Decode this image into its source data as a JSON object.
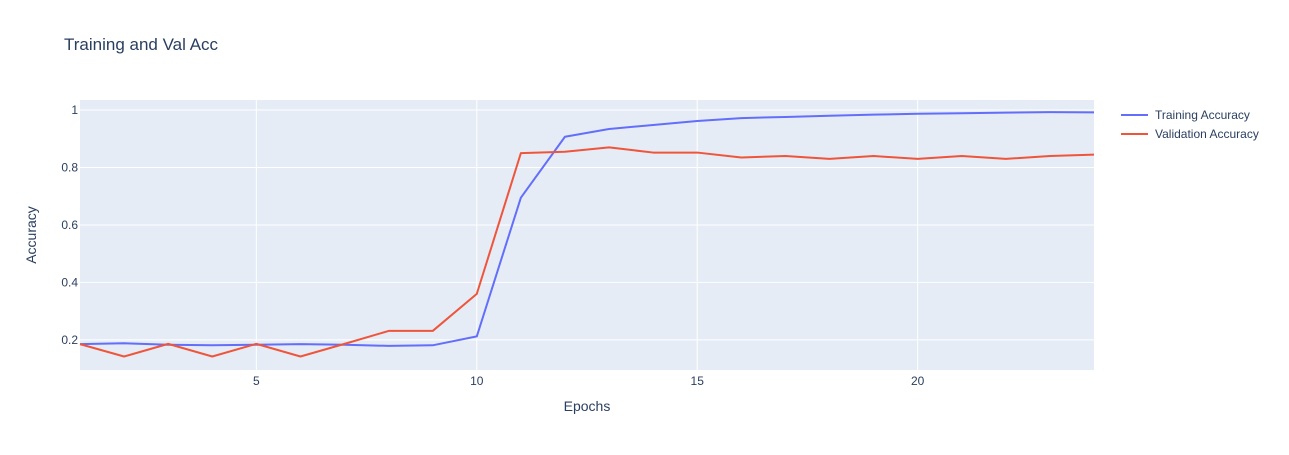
{
  "chart_data": {
    "type": "line",
    "title": "Training and Val Acc",
    "xlabel": "Epochs",
    "ylabel": "Accuracy",
    "x": [
      1,
      2,
      3,
      4,
      5,
      6,
      7,
      8,
      9,
      10,
      11,
      12,
      13,
      14,
      15,
      16,
      17,
      18,
      19,
      20,
      21,
      22,
      23,
      24
    ],
    "series": [
      {
        "name": "Training Accuracy",
        "color": "#636efa",
        "values": [
          0.185,
          0.188,
          0.183,
          0.181,
          0.183,
          0.185,
          0.183,
          0.179,
          0.181,
          0.212,
          0.695,
          0.907,
          0.934,
          0.948,
          0.962,
          0.972,
          0.976,
          0.98,
          0.984,
          0.987,
          0.989,
          0.991,
          0.993,
          0.992
        ]
      },
      {
        "name": "Validation Accuracy",
        "color": "#ef553b",
        "values": [
          0.185,
          0.142,
          0.186,
          0.142,
          0.186,
          0.142,
          0.186,
          0.231,
          0.231,
          0.36,
          0.85,
          0.855,
          0.87,
          0.852,
          0.852,
          0.835,
          0.84,
          0.83,
          0.84,
          0.83,
          0.84,
          0.83,
          0.84,
          0.845
        ]
      }
    ],
    "xlim": [
      1,
      24
    ],
    "ylim": [
      0.095,
      1.035
    ],
    "xticks": [
      5,
      10,
      15,
      20
    ],
    "yticks": [
      0.2,
      0.4,
      0.6,
      0.8,
      1
    ],
    "xtick_labels": [
      "5",
      "10",
      "15",
      "20"
    ],
    "ytick_labels": [
      "0.2",
      "0.4",
      "0.6",
      "0.8",
      "1"
    ],
    "grid": true,
    "legend_position": "top-right",
    "plot_background": "#e5ecf6",
    "text_color": "#2a3f5f"
  }
}
